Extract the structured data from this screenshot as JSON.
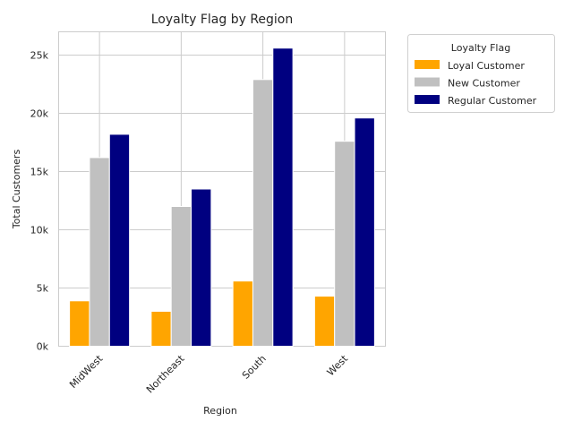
{
  "chart_data": {
    "type": "bar",
    "title": "Loyalty Flag by Region",
    "xlabel": "Region",
    "ylabel": "Total Customers",
    "categories": [
      "MidWest",
      "Northeast",
      "South",
      "West"
    ],
    "series": [
      {
        "name": "Loyal Customer",
        "color": "#ffa500",
        "values": [
          3900,
          3000,
          5600,
          4300
        ]
      },
      {
        "name": "New Customer",
        "color": "#c0c0c0",
        "values": [
          16200,
          12000,
          22900,
          17600
        ]
      },
      {
        "name": "Regular Customer",
        "color": "#000080",
        "values": [
          18200,
          13500,
          25600,
          19600
        ]
      }
    ],
    "ylim": [
      0,
      27000
    ],
    "yticks": [
      0,
      5000,
      10000,
      15000,
      20000,
      25000
    ],
    "ytick_labels": [
      "0k",
      "5k",
      "10k",
      "15k",
      "20k",
      "25k"
    ],
    "grid": true,
    "legend": {
      "title": "Loyalty Flag",
      "placement": "outside-right-top"
    }
  }
}
